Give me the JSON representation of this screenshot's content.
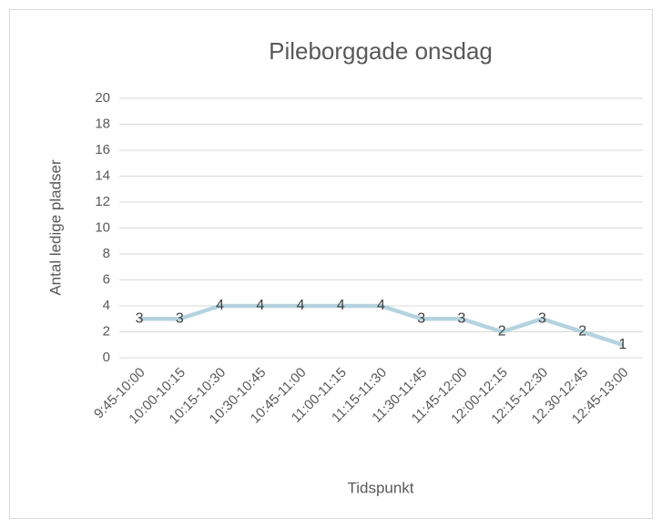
{
  "chart_data": {
    "type": "line",
    "title": "Pileborggade onsdag",
    "x_label": "Tidspunkt",
    "y_label": "Antal ledige pladser",
    "categories": [
      "9:45-10:00",
      "10:00-10:15",
      "10:15-10:30",
      "10:30-10:45",
      "10:45-11:00",
      "11:00-11:15",
      "11:15-11:30",
      "11:30-11:45",
      "11:45-12:00",
      "12:00-12:15",
      "12:15-12:30",
      "12.30-12:45",
      "12:45-13:00"
    ],
    "values": [
      3,
      3,
      4,
      4,
      4,
      4,
      4,
      3,
      3,
      2,
      3,
      2,
      1
    ],
    "color": "#b4d3df",
    "ylim": [
      0,
      20
    ],
    "yticks": [
      0,
      2,
      4,
      6,
      8,
      10,
      12,
      14,
      16,
      18,
      20
    ],
    "grid": true
  }
}
